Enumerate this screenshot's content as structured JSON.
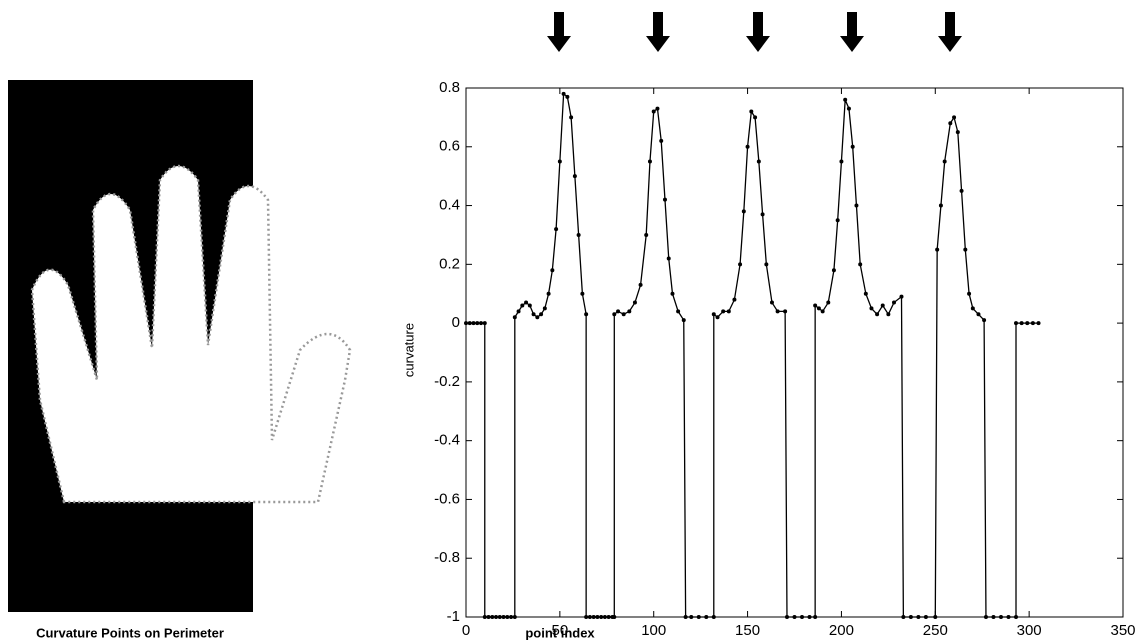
{
  "image_caption": "Curvature Points on Perimeter",
  "chart_data": {
    "type": "line",
    "x_label": "point index",
    "y_label": "curvature",
    "xlim": [
      0,
      350
    ],
    "xticks": [
      0,
      50,
      100,
      150,
      200,
      250,
      300,
      350
    ],
    "ylim": [
      -1,
      0.8
    ],
    "yticks": [
      -1,
      -0.8,
      -0.6,
      -0.4,
      -0.2,
      0,
      0.2,
      0.4,
      0.6,
      0.8
    ],
    "grid": false,
    "series": [
      {
        "color": "#000000",
        "x": [
          0,
          2,
          4,
          6,
          8,
          10,
          10,
          12,
          14,
          16,
          18,
          20,
          22,
          24,
          26,
          26,
          28,
          30,
          32,
          34,
          36,
          38,
          40,
          42,
          44,
          46,
          48,
          50,
          52,
          54,
          56,
          58,
          60,
          62,
          64,
          64,
          66,
          68,
          70,
          72,
          74,
          76,
          78,
          79,
          79,
          81,
          84,
          87,
          90,
          93,
          96,
          98,
          100,
          102,
          104,
          106,
          108,
          110,
          113,
          116,
          117,
          120,
          124,
          128,
          132,
          132,
          134,
          137,
          140,
          143,
          146,
          148,
          150,
          152,
          154,
          156,
          158,
          160,
          163,
          166,
          170,
          171,
          175,
          179,
          183,
          186,
          186,
          188,
          190,
          193,
          196,
          198,
          200,
          202,
          204,
          206,
          208,
          210,
          213,
          216,
          219,
          222,
          225,
          228,
          232,
          233,
          237,
          241,
          245,
          250,
          251,
          253,
          255,
          258,
          260,
          262,
          264,
          266,
          268,
          270,
          273,
          276,
          277,
          281,
          285,
          289,
          293,
          293,
          296,
          299,
          302,
          305
        ],
        "values": [
          0,
          0,
          0,
          0,
          0,
          0,
          -1,
          -1,
          -1,
          -1,
          -1,
          -1,
          -1,
          -1,
          -1,
          0.02,
          0.04,
          0.06,
          0.07,
          0.06,
          0.03,
          0.02,
          0.03,
          0.05,
          0.1,
          0.18,
          0.32,
          0.55,
          0.78,
          0.77,
          0.7,
          0.5,
          0.3,
          0.1,
          0.03,
          -1,
          -1,
          -1,
          -1,
          -1,
          -1,
          -1,
          -1,
          -1,
          0.03,
          0.04,
          0.03,
          0.04,
          0.07,
          0.13,
          0.3,
          0.55,
          0.72,
          0.73,
          0.62,
          0.42,
          0.22,
          0.1,
          0.04,
          0.01,
          -1,
          -1,
          -1,
          -1,
          -1,
          0.03,
          0.02,
          0.04,
          0.04,
          0.08,
          0.2,
          0.38,
          0.6,
          0.72,
          0.7,
          0.55,
          0.37,
          0.2,
          0.07,
          0.04,
          0.04,
          -1,
          -1,
          -1,
          -1,
          -1,
          0.06,
          0.05,
          0.04,
          0.07,
          0.18,
          0.35,
          0.55,
          0.76,
          0.73,
          0.6,
          0.4,
          0.2,
          0.1,
          0.05,
          0.03,
          0.06,
          0.03,
          0.07,
          0.09,
          -1,
          -1,
          -1,
          -1,
          -1,
          0.25,
          0.4,
          0.55,
          0.68,
          0.7,
          0.65,
          0.45,
          0.25,
          0.1,
          0.05,
          0.03,
          0.01,
          -1,
          -1,
          -1,
          -1,
          -1,
          0,
          0,
          0,
          0,
          0
        ]
      }
    ]
  }
}
